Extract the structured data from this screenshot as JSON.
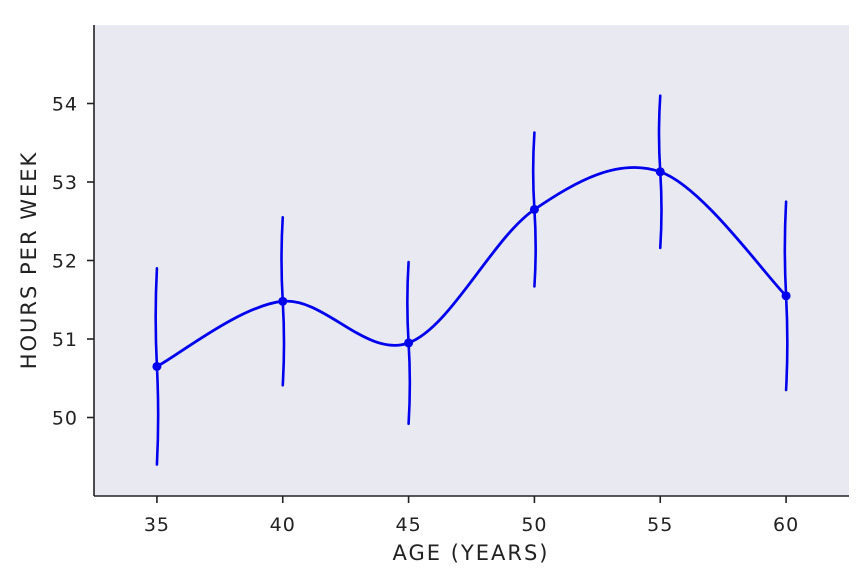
{
  "chart_data": {
    "type": "line",
    "title": "",
    "xlabel": "AGE (YEARS)",
    "ylabel": "HOURS PER WEEK",
    "x": [
      35,
      40,
      45,
      50,
      55,
      60
    ],
    "series": [
      {
        "values": [
          50.65,
          51.48,
          50.95,
          52.65,
          53.13,
          51.55
        ],
        "error": [
          1.25,
          1.07,
          1.03,
          0.98,
          0.97,
          1.2
        ],
        "color": "#0000ee"
      }
    ],
    "xticks": [
      "35",
      "40",
      "45",
      "50",
      "55",
      "60"
    ],
    "yticks": [
      "50",
      "51",
      "52",
      "53",
      "54"
    ],
    "xlim": [
      32.5,
      62.5
    ],
    "ylim": [
      49.0,
      55.0
    ],
    "grid": false,
    "smooth": true,
    "colors": {
      "plot_background": "#e9e9f1",
      "axis": "#222222",
      "line": "#0000ee"
    }
  }
}
